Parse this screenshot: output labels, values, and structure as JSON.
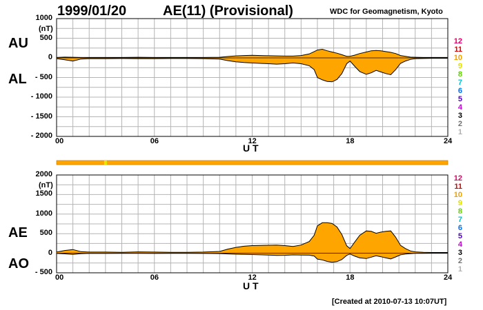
{
  "header": {
    "date": "1999/01/20",
    "title": "AE(11) (Provisional)",
    "source": "WDC for Geomagnetism, Kyoto"
  },
  "footer": {
    "created": "[Created at 2010-07-13 10:07UT]"
  },
  "legend_numbers": [
    {
      "label": "12",
      "color": "#e0006a"
    },
    {
      "label": "11",
      "color": "#e00000"
    },
    {
      "label": "10",
      "color": "#f0a000"
    },
    {
      "label": "9",
      "color": "#e0e000"
    },
    {
      "label": "8",
      "color": "#60d000"
    },
    {
      "label": "7",
      "color": "#00c0d0"
    },
    {
      "label": "6",
      "color": "#0070f0"
    },
    {
      "label": "5",
      "color": "#5000c0"
    },
    {
      "label": "4",
      "color": "#c000d0"
    },
    {
      "label": "3",
      "color": "#000000"
    },
    {
      "label": "2",
      "color": "#707070"
    },
    {
      "label": "1",
      "color": "#b0b0b0"
    }
  ],
  "colors": {
    "fill": "#ffa500",
    "grid": "#b4b4b4",
    "line": "#000000",
    "status_bar": "#ffa500",
    "status_highlight": "#e8e800"
  },
  "chart_data": [
    {
      "type": "area",
      "name_upper": "AU",
      "name_lower": "AL",
      "unit": "(nT)",
      "xlabel": "U T",
      "x_ticks": [
        "00",
        "06",
        "12",
        "18",
        "24"
      ],
      "y_ticks": [
        "1000",
        "500",
        "0",
        "- 500",
        "- 1000",
        "- 1500",
        "- 2000"
      ],
      "xlim": [
        0,
        24
      ],
      "ylim": [
        -2000,
        1000
      ],
      "grid": true,
      "x": [
        0,
        0.5,
        1,
        1.5,
        2,
        3,
        4,
        5,
        6,
        7,
        8,
        9,
        10,
        10.5,
        11,
        11.5,
        12,
        12.5,
        13,
        13.5,
        14,
        14.5,
        15,
        15.5,
        15.8,
        16,
        16.3,
        16.6,
        16.9,
        17.2,
        17.5,
        17.8,
        18,
        18.3,
        18.6,
        19,
        19.3,
        19.6,
        19.9,
        20.2,
        20.5,
        20.8,
        21.1,
        21.4,
        21.7,
        22,
        22.5,
        23,
        23.5,
        24
      ],
      "series": [
        {
          "name": "AU",
          "values": [
            10,
            20,
            15,
            10,
            10,
            10,
            10,
            15,
            10,
            10,
            10,
            10,
            15,
            35,
            50,
            60,
            65,
            60,
            55,
            50,
            45,
            45,
            60,
            100,
            160,
            200,
            220,
            180,
            150,
            120,
            80,
            40,
            40,
            70,
            110,
            150,
            180,
            190,
            180,
            160,
            140,
            110,
            60,
            40,
            20,
            15,
            10,
            10,
            10,
            10
          ]
        },
        {
          "name": "AL",
          "values": [
            -20,
            -50,
            -80,
            -30,
            -20,
            -20,
            -15,
            -20,
            -20,
            -15,
            -15,
            -20,
            -30,
            -70,
            -100,
            -120,
            -130,
            -140,
            -150,
            -160,
            -150,
            -130,
            -150,
            -200,
            -300,
            -500,
            -560,
            -600,
            -610,
            -550,
            -400,
            -150,
            -80,
            -220,
            -350,
            -420,
            -380,
            -320,
            -360,
            -400,
            -430,
            -300,
            -140,
            -80,
            -40,
            -20,
            -15,
            -10,
            -10,
            -10
          ]
        }
      ]
    },
    {
      "type": "area",
      "name_upper": "AE",
      "name_lower": "AO",
      "unit": "(nT)",
      "xlabel": "U T",
      "x_ticks": [
        "00",
        "06",
        "12",
        "18",
        "24"
      ],
      "y_ticks": [
        "2000",
        "1500",
        "1000",
        "500",
        "0",
        "- 500"
      ],
      "xlim": [
        0,
        24
      ],
      "ylim": [
        -500,
        2000
      ],
      "grid": true,
      "x": [
        0,
        0.5,
        1,
        1.5,
        2,
        3,
        4,
        5,
        6,
        7,
        8,
        9,
        10,
        10.5,
        11,
        11.5,
        12,
        12.5,
        13,
        13.5,
        14,
        14.5,
        15,
        15.5,
        15.8,
        16,
        16.3,
        16.6,
        16.9,
        17.2,
        17.5,
        17.8,
        18,
        18.3,
        18.6,
        19,
        19.3,
        19.6,
        19.9,
        20.2,
        20.5,
        20.8,
        21.1,
        21.4,
        21.7,
        22,
        22.5,
        23,
        23.5,
        24
      ],
      "series": [
        {
          "name": "AE",
          "values": [
            30,
            70,
            95,
            40,
            30,
            30,
            25,
            35,
            30,
            25,
            25,
            30,
            45,
            105,
            150,
            180,
            195,
            200,
            205,
            210,
            195,
            175,
            210,
            300,
            460,
            700,
            780,
            780,
            760,
            670,
            480,
            190,
            120,
            290,
            460,
            570,
            560,
            510,
            540,
            560,
            570,
            410,
            200,
            120,
            60,
            35,
            25,
            20,
            20,
            20
          ]
        },
        {
          "name": "AO",
          "values": [
            -5,
            -15,
            -30,
            -10,
            -5,
            -5,
            -3,
            -3,
            -5,
            -3,
            -3,
            -5,
            -8,
            -18,
            -25,
            -30,
            -33,
            -40,
            -48,
            -55,
            -53,
            -43,
            -45,
            -50,
            -70,
            -150,
            -170,
            -210,
            -230,
            -215,
            -160,
            -55,
            -20,
            -75,
            -120,
            -135,
            -100,
            -65,
            -90,
            -120,
            -145,
            -95,
            -40,
            -20,
            -10,
            -3,
            -3,
            0,
            0,
            0
          ]
        }
      ]
    }
  ],
  "status_bar": {
    "highlight_ut": 3.0
  }
}
